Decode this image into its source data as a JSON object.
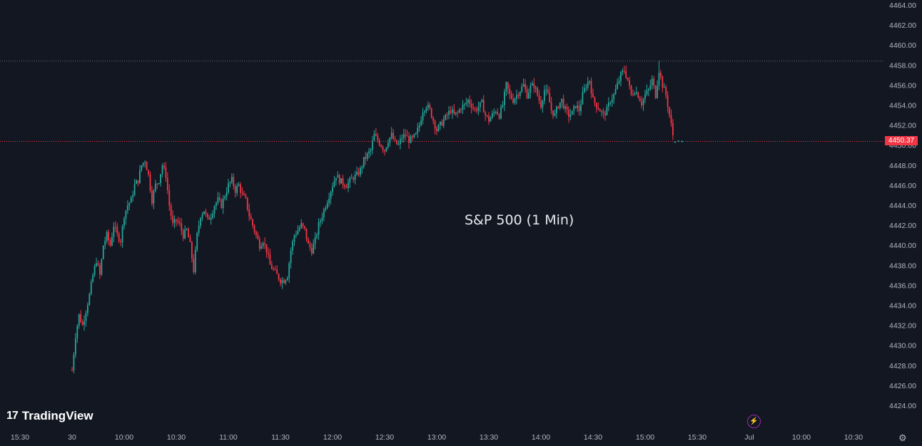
{
  "chart_data": {
    "type": "candlestick",
    "title": "S&P 500 (1 Min)",
    "current_price_label": "4450.37",
    "current_price": 4450.37,
    "high_reference": 4458.4,
    "y_range": [
      4423,
      4464.5
    ],
    "y_ticks": [
      "4424.00",
      "4426.00",
      "4428.00",
      "4430.00",
      "4432.00",
      "4434.00",
      "4436.00",
      "4438.00",
      "4440.00",
      "4442.00",
      "4444.00",
      "4446.00",
      "4448.00",
      "4450.00",
      "4452.00",
      "4454.00",
      "4456.00",
      "4458.00",
      "4460.00",
      "4462.00",
      "4464.00"
    ],
    "x_ticks": [
      "15:30",
      "30",
      "10:00",
      "10:30",
      "11:00",
      "11:30",
      "12:00",
      "12:30",
      "13:00",
      "13:30",
      "14:00",
      "14:30",
      "15:00",
      "15:30",
      "Jul",
      "10:00",
      "10:30"
    ],
    "x_tick_minutes": [
      -30,
      0,
      30,
      60,
      90,
      120,
      150,
      180,
      210,
      240,
      270,
      300,
      330,
      360,
      390,
      420,
      450
    ],
    "session_start": "09:30",
    "path": [
      [
        0,
        4427.5
      ],
      [
        2,
        4431
      ],
      [
        4,
        4433
      ],
      [
        6,
        4432
      ],
      [
        8,
        4433.5
      ],
      [
        10,
        4435
      ],
      [
        12,
        4437
      ],
      [
        14,
        4438.5
      ],
      [
        16,
        4437
      ],
      [
        18,
        4440
      ],
      [
        20,
        4441
      ],
      [
        22,
        4440
      ],
      [
        24,
        4442
      ],
      [
        26,
        4441
      ],
      [
        28,
        4440.5
      ],
      [
        30,
        4443
      ],
      [
        32,
        4444
      ],
      [
        34,
        4444.5
      ],
      [
        36,
        4446
      ],
      [
        38,
        4446.5
      ],
      [
        40,
        4448
      ],
      [
        42,
        4448.5
      ],
      [
        44,
        4447
      ],
      [
        46,
        4444.5
      ],
      [
        48,
        4446
      ],
      [
        50,
        4446.5
      ],
      [
        52,
        4448
      ],
      [
        54,
        4447
      ],
      [
        56,
        4444
      ],
      [
        58,
        4442
      ],
      [
        60,
        4442.5
      ],
      [
        62,
        4442
      ],
      [
        64,
        4441
      ],
      [
        66,
        4441.5
      ],
      [
        68,
        4440
      ],
      [
        70,
        4437.5
      ],
      [
        72,
        4441
      ],
      [
        74,
        4443
      ],
      [
        76,
        4443.5
      ],
      [
        78,
        4442.5
      ],
      [
        80,
        4443
      ],
      [
        82,
        4444
      ],
      [
        84,
        4444.5
      ],
      [
        86,
        4444
      ],
      [
        88,
        4445
      ],
      [
        90,
        4446
      ],
      [
        92,
        4446.5
      ],
      [
        94,
        4445.5
      ],
      [
        96,
        4446
      ],
      [
        98,
        4445
      ],
      [
        100,
        4444.5
      ],
      [
        102,
        4443
      ],
      [
        104,
        4442
      ],
      [
        106,
        4441
      ],
      [
        108,
        4440
      ],
      [
        110,
        4440.5
      ],
      [
        112,
        4439.5
      ],
      [
        114,
        4438
      ],
      [
        116,
        4437.5
      ],
      [
        118,
        4437
      ],
      [
        120,
        4436.5
      ],
      [
        122,
        4436.5
      ],
      [
        124,
        4437
      ],
      [
        126,
        4439.5
      ],
      [
        128,
        4441
      ],
      [
        130,
        4441.5
      ],
      [
        132,
        4442
      ],
      [
        134,
        4441.5
      ],
      [
        136,
        4440
      ],
      [
        138,
        4439.5
      ],
      [
        140,
        4440.5
      ],
      [
        142,
        4442
      ],
      [
        144,
        4443
      ],
      [
        146,
        4444
      ],
      [
        148,
        4445
      ],
      [
        150,
        4446
      ],
      [
        152,
        4447
      ],
      [
        154,
        4446.5
      ],
      [
        156,
        4446.2
      ],
      [
        158,
        4446
      ],
      [
        160,
        4446.4
      ],
      [
        162,
        4446.8
      ],
      [
        164,
        4447
      ],
      [
        166,
        4447.5
      ],
      [
        168,
        4448.5
      ],
      [
        170,
        4449
      ],
      [
        172,
        4449.5
      ],
      [
        174,
        4451
      ],
      [
        176,
        4450.5
      ],
      [
        178,
        4450
      ],
      [
        180,
        4449.5
      ],
      [
        182,
        4450.5
      ],
      [
        184,
        4451
      ],
      [
        186,
        4450.2
      ],
      [
        188,
        4450
      ],
      [
        190,
        4450.8
      ],
      [
        192,
        4451
      ],
      [
        194,
        4450.5
      ],
      [
        196,
        4450.6
      ],
      [
        198,
        4451
      ],
      [
        200,
        4452
      ],
      [
        202,
        4453.5
      ],
      [
        204,
        4454
      ],
      [
        206,
        4453.5
      ],
      [
        208,
        4452.5
      ],
      [
        210,
        4451.5
      ],
      [
        212,
        4452
      ],
      [
        214,
        4452.5
      ],
      [
        216,
        4453
      ],
      [
        218,
        4453.5
      ],
      [
        220,
        4453
      ],
      [
        222,
        4453.2
      ],
      [
        224,
        4453.8
      ],
      [
        226,
        4454
      ],
      [
        228,
        4454.5
      ],
      [
        230,
        4454
      ],
      [
        232,
        4453.5
      ],
      [
        234,
        4453.8
      ],
      [
        236,
        4454.2
      ],
      [
        238,
        4453
      ],
      [
        240,
        4452.5
      ],
      [
        242,
        4453
      ],
      [
        244,
        4453.5
      ],
      [
        246,
        4453
      ],
      [
        248,
        4454
      ],
      [
        250,
        4456
      ],
      [
        252,
        4455
      ],
      [
        254,
        4454.5
      ],
      [
        256,
        4455
      ],
      [
        258,
        4455.5
      ],
      [
        260,
        4456
      ],
      [
        262,
        4455
      ],
      [
        264,
        4455.8
      ],
      [
        266,
        4456
      ],
      [
        268,
        4455
      ],
      [
        270,
        4454
      ],
      [
        272,
        4455.5
      ],
      [
        274,
        4455
      ],
      [
        276,
        4453.5
      ],
      [
        278,
        4453
      ],
      [
        280,
        4454
      ],
      [
        282,
        4454.5
      ],
      [
        284,
        4453.5
      ],
      [
        286,
        4453
      ],
      [
        288,
        4453.2
      ],
      [
        290,
        4454
      ],
      [
        292,
        4453.5
      ],
      [
        294,
        4455
      ],
      [
        296,
        4456
      ],
      [
        298,
        4456.5
      ],
      [
        300,
        4454.5
      ],
      [
        302,
        4454
      ],
      [
        304,
        4453.5
      ],
      [
        306,
        4453
      ],
      [
        308,
        4453.5
      ],
      [
        310,
        4454.5
      ],
      [
        312,
        4455
      ],
      [
        314,
        4456
      ],
      [
        316,
        4457
      ],
      [
        318,
        4457.5
      ],
      [
        320,
        4456.5
      ],
      [
        322,
        4455
      ],
      [
        324,
        4455.5
      ],
      [
        326,
        4455
      ],
      [
        328,
        4454.2
      ],
      [
        330,
        4455
      ],
      [
        332,
        4455.5
      ],
      [
        334,
        4456.5
      ],
      [
        336,
        4455
      ],
      [
        338,
        4457.5
      ],
      [
        340,
        4456
      ],
      [
        342,
        4455
      ],
      [
        344,
        4453
      ],
      [
        346,
        4451
      ]
    ],
    "after_hours": [
      [
        346,
        4450.3
      ],
      [
        348,
        4450.4
      ],
      [
        350,
        4450.37
      ]
    ],
    "high_point_minute": 338
  }
}
